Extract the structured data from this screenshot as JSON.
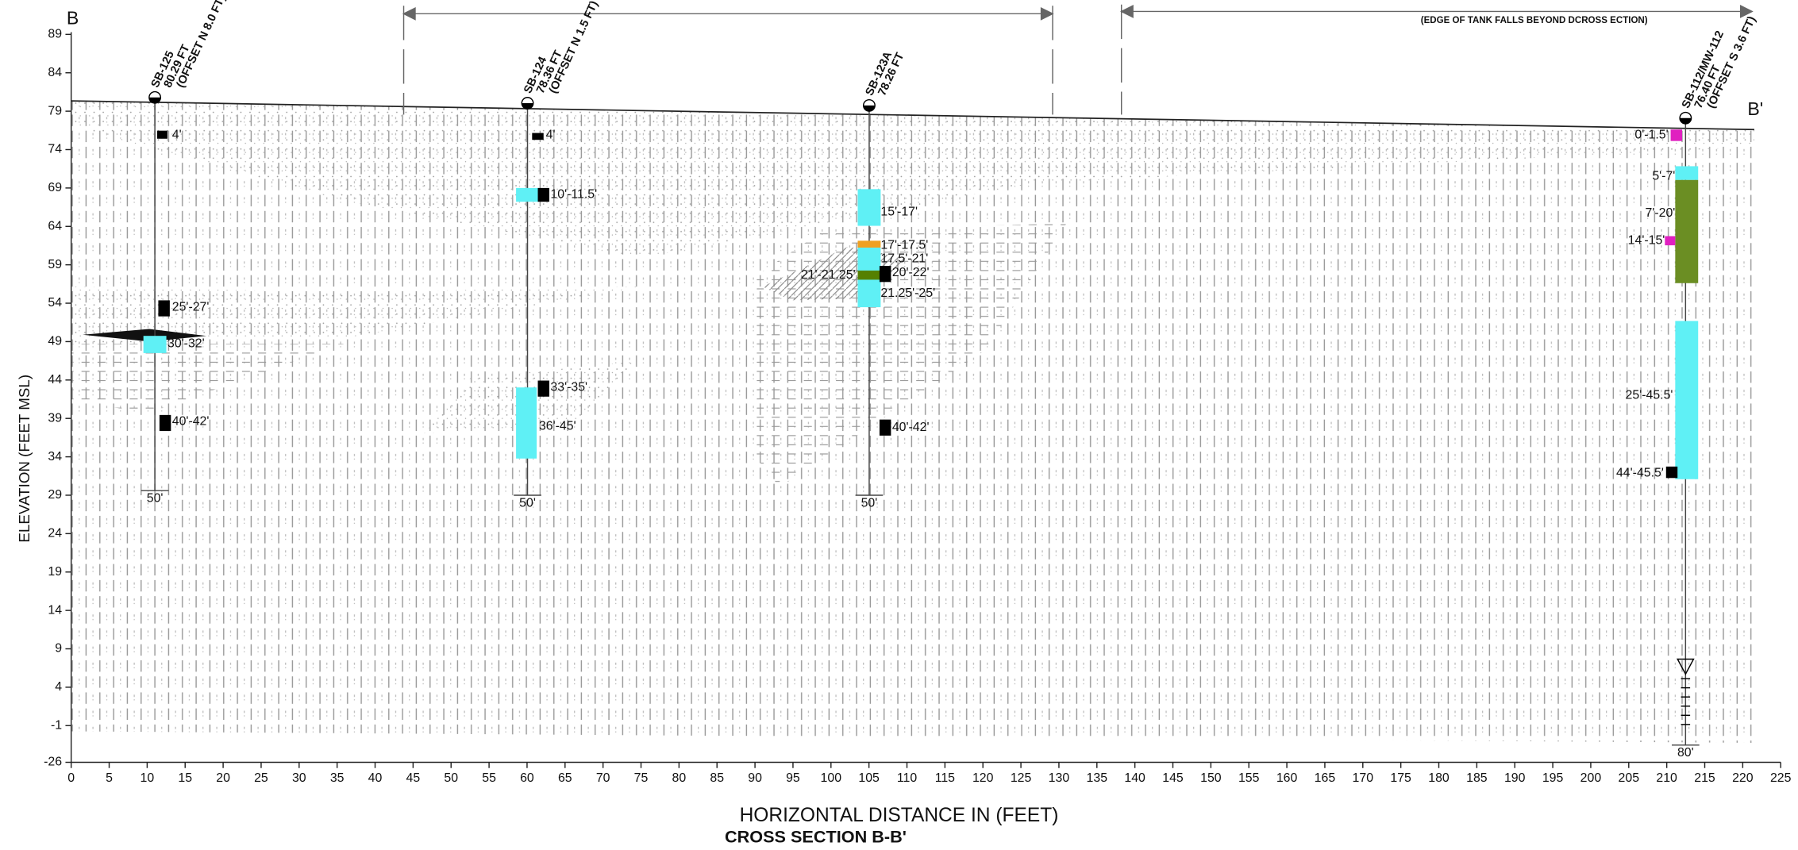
{
  "title": "CROSS SECTION B-B'",
  "section_ends": [
    "B",
    "B'"
  ],
  "note": "(EDGE OF TANK FALLS BEYOND DCROSS ECTION)",
  "x_axis": {
    "label": "HORIZONTAL DISTANCE IN (FEET)",
    "ticks": [
      "0",
      "5",
      "10",
      "15",
      "20",
      "25",
      "30",
      "35",
      "40",
      "45",
      "50",
      "55",
      "60",
      "65",
      "70",
      "75",
      "80",
      "85",
      "90",
      "95",
      "100",
      "105",
      "110",
      "115",
      "120",
      "125",
      "130",
      "135",
      "140",
      "145",
      "150",
      "155",
      "160",
      "165",
      "170",
      "175",
      "180",
      "185",
      "190",
      "195",
      "200",
      "205",
      "210",
      "215",
      "220",
      "225"
    ]
  },
  "y_axis": {
    "label": "ELEVATION (FEET MSL)",
    "ticks": [
      "89",
      "84",
      "79",
      "74",
      "69",
      "64",
      "59",
      "54",
      "49",
      "44",
      "39",
      "34",
      "29",
      "24",
      "19",
      "14",
      "9",
      "4",
      "-1",
      "-26"
    ]
  },
  "borings": [
    {
      "name": "SB-125",
      "elevation": "80.29 FT",
      "offset": "(OFFSET N 8.0 FT)",
      "depth": "50'",
      "samples": [
        "4'",
        "25'-27'",
        "30'-32'",
        "40'-42'"
      ]
    },
    {
      "name": "SB-124",
      "elevation": "78.36 FT",
      "offset": "(OFFSET N 1.5 FT)",
      "depth": "50'",
      "samples": [
        "4'",
        "10'-11.5'",
        "33'-35'",
        "36'-45'"
      ]
    },
    {
      "name": "SB-123A",
      "elevation": "78.26 FT",
      "depth": "50'",
      "samples": [
        "15'-17'",
        "17'-17.5'",
        "17.5'-21'",
        "21'-21.25'",
        "20'-22'",
        "21.25'-25'",
        "40'-42'"
      ]
    },
    {
      "name": "SB-112/MW-112",
      "elevation": "76.40 FT",
      "offset": "(OFFSET S 3.6 FT)",
      "depth": "80'",
      "samples": [
        "0'-1.5'",
        "5'-7'",
        "7'-20'",
        "14'-15'",
        "25'-45.5'",
        "44'-45.5'"
      ]
    }
  ]
}
